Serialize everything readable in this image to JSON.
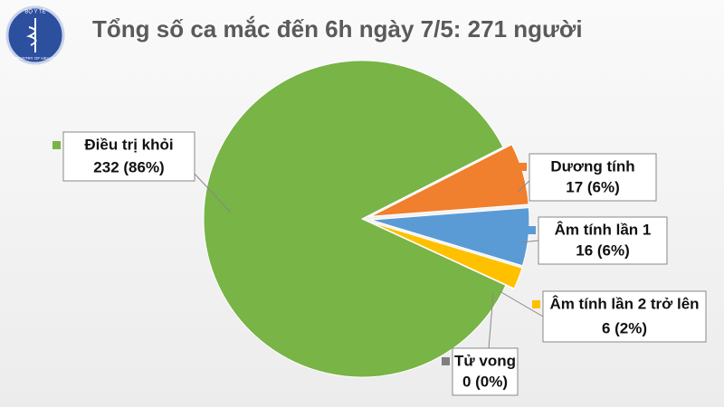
{
  "logo": {
    "top": "BỘ Y TẾ",
    "bottom": "MINISTRY OF HEALTH"
  },
  "chart_data": {
    "type": "pie",
    "title": "Tổng số ca mắc đến 6h ngày 7/5: 271 người",
    "categories": [
      "Điều trị khỏi",
      "Dương tính",
      "Âm tính lần 1",
      "Âm tính lần 2 trở lên",
      "Tử vong"
    ],
    "values": [
      232,
      17,
      16,
      6,
      0
    ],
    "value_labels": [
      "232 (86%)",
      "17 (6%)",
      "16 (6%)",
      "6 (2%)",
      "0 (0%)"
    ],
    "colors": [
      "#78b446",
      "#f07f2e",
      "#5b9bd5",
      "#ffc000",
      "#7f7f7f"
    ]
  }
}
